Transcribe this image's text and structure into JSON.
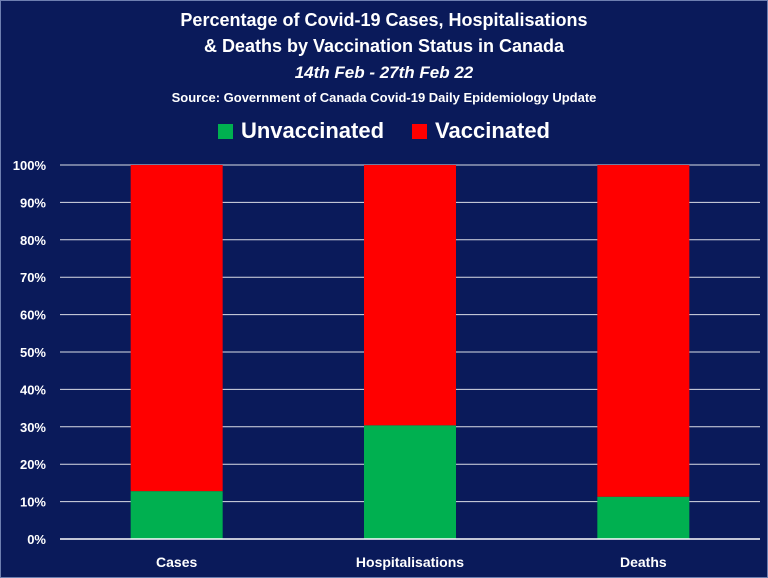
{
  "title": {
    "line1": "Percentage of Covid-19 Cases, Hospitalisations",
    "line2": "& Deaths by Vaccination Status in Canada",
    "subtitle": "14th Feb - 27th Feb 22",
    "source": "Source: Government of Canada  Covid-19 Daily Epidemiology Update"
  },
  "legend": [
    {
      "name": "Unvaccinated",
      "color": "#00b050"
    },
    {
      "name": "Vaccinated",
      "color": "#ff0000"
    }
  ],
  "colors": {
    "background": "#0a1a5a",
    "grid": "#ffffff",
    "text": "#ffffff"
  },
  "chart_data": {
    "type": "bar",
    "stacked": true,
    "percent": true,
    "categories": [
      "Cases",
      "Hospitalisations",
      "Deaths"
    ],
    "series": [
      {
        "name": "Unvaccinated",
        "color": "#00b050",
        "values": [
          12.8,
          30.4,
          11.3
        ]
      },
      {
        "name": "Vaccinated",
        "color": "#ff0000",
        "values": [
          87.2,
          69.6,
          88.7
        ]
      }
    ],
    "ylim": [
      0,
      100
    ],
    "yticks": [
      "0%",
      "10%",
      "20%",
      "30%",
      "40%",
      "50%",
      "60%",
      "70%",
      "80%",
      "90%",
      "100%"
    ],
    "grid": true,
    "legend_position": "top"
  }
}
